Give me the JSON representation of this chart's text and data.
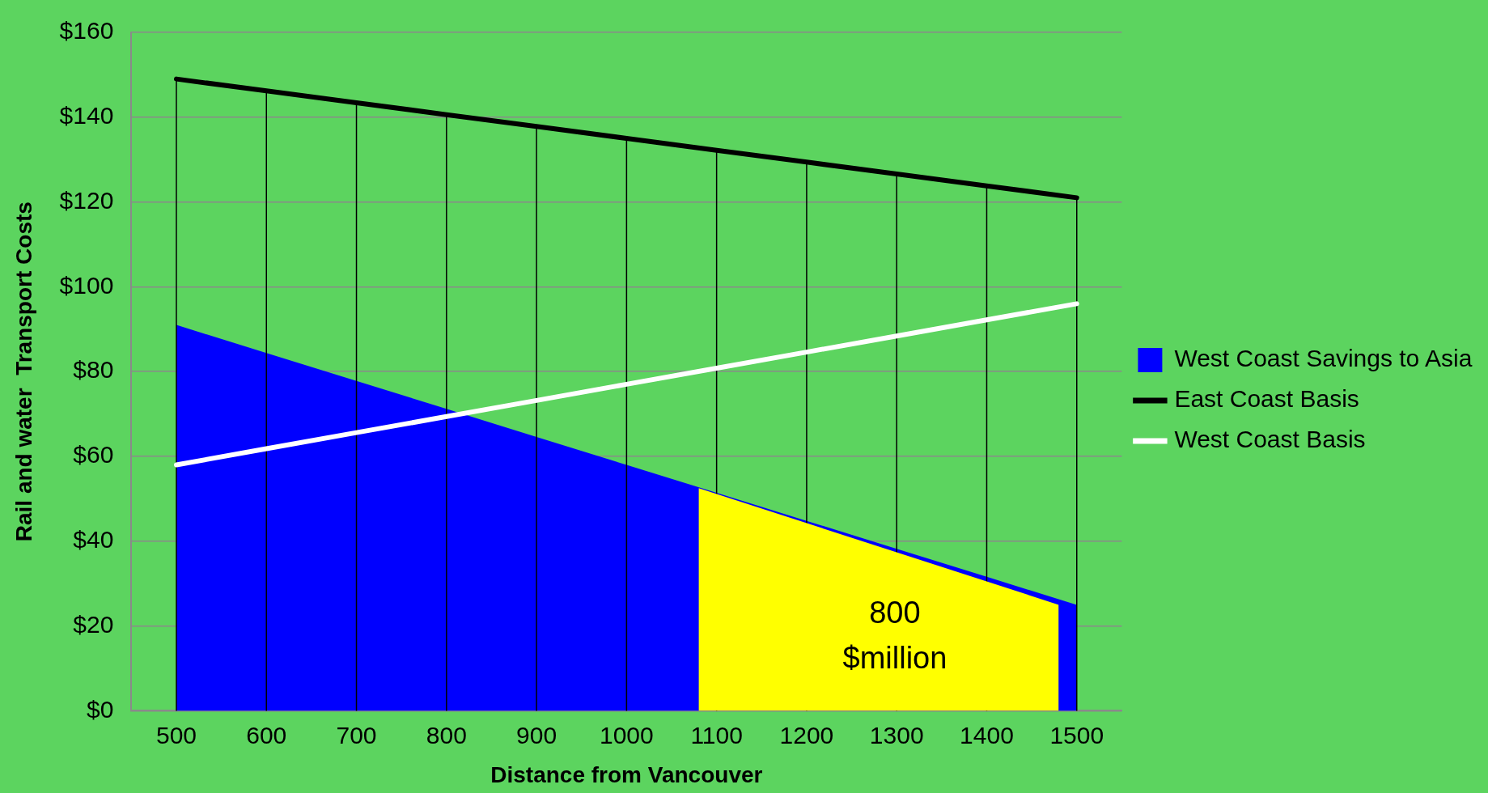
{
  "chart_data": {
    "type": "line",
    "xlabel": "Distance from Vancouver",
    "ylabel": "Rail and water  Transport Costs",
    "x": [
      500,
      600,
      700,
      800,
      900,
      1000,
      1100,
      1200,
      1300,
      1400,
      1500
    ],
    "series": [
      {
        "name": "West Coast Savings to Asia",
        "type": "area",
        "color": "#0000ff",
        "values": [
          91,
          84.4,
          77.8,
          71.2,
          64.6,
          58,
          51.4,
          44.8,
          38.2,
          31.6,
          25
        ]
      },
      {
        "name": "East Coast Basis",
        "color": "#000000",
        "values": [
          149,
          146.2,
          143.4,
          140.6,
          137.8,
          135,
          132.2,
          129.4,
          126.6,
          123.8,
          121
        ]
      },
      {
        "name": "West Coast Basis",
        "color": "#ffffff",
        "values": [
          58,
          61.8,
          65.6,
          69.4,
          73.2,
          77,
          80.8,
          84.6,
          88.4,
          92.2,
          96
        ]
      },
      {
        "type": "area",
        "color": "#ffff00",
        "x": [
          1080,
          1480
        ],
        "values": [
          52.5,
          25
        ]
      }
    ],
    "xlim": [
      450,
      1550
    ],
    "xticks": [
      500,
      600,
      700,
      800,
      900,
      1000,
      1100,
      1200,
      1300,
      1400,
      1500
    ],
    "ylim": [
      0,
      160
    ],
    "yticks": [
      {
        "value": 0,
        "label": "$0"
      },
      {
        "value": 20,
        "label": "$20"
      },
      {
        "value": 40,
        "label": "$40"
      },
      {
        "value": 60,
        "label": "$60"
      },
      {
        "value": 80,
        "label": "$80"
      },
      {
        "value": 100,
        "label": "$100"
      },
      {
        "value": 120,
        "label": "$120"
      },
      {
        "value": 140,
        "label": "$140"
      },
      {
        "value": 160,
        "label": "$160"
      }
    ],
    "grid": true,
    "legend": "right",
    "marker": "none",
    "annotations": [
      "800 $million"
    ]
  }
}
